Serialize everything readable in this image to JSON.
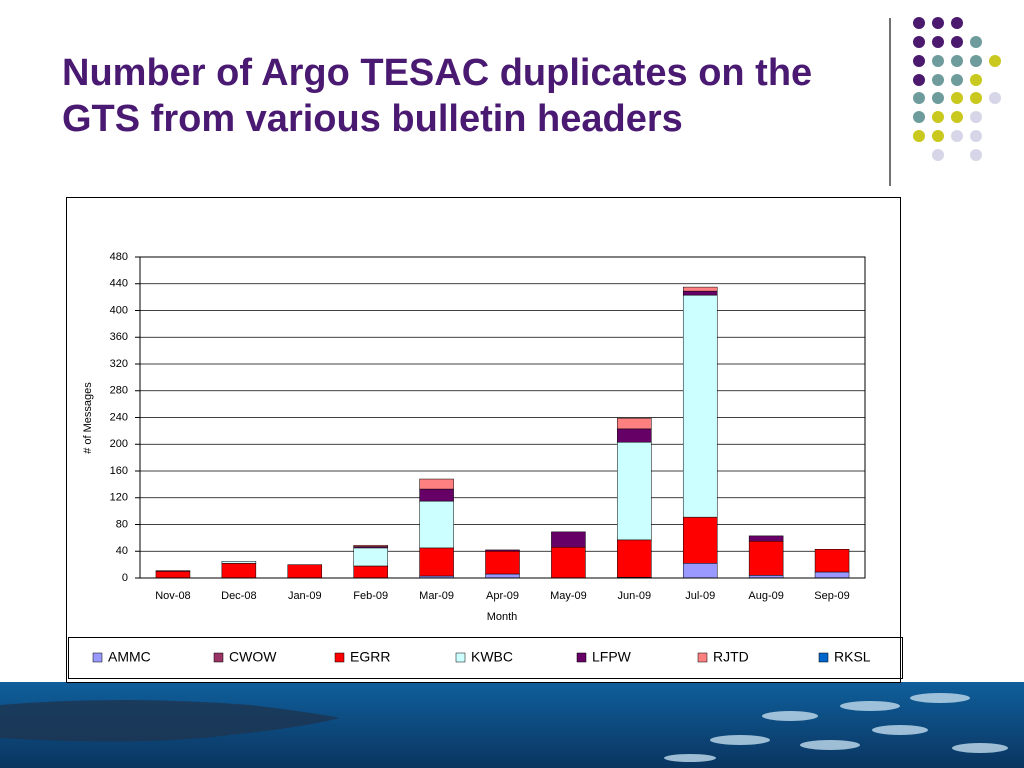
{
  "chart_data": {
    "type": "stacked_bar",
    "title": "Number of Argo TESAC duplicates on the GTS from various bulletin headers",
    "x_label": "Month",
    "y_label": "# of Messages",
    "categories": [
      "Nov-08",
      "Dec-08",
      "Jan-09",
      "Feb-09",
      "Mar-09",
      "Apr-09",
      "May-09",
      "Jun-09",
      "Jul-09",
      "Aug-09",
      "Sep-09"
    ],
    "series": [
      {
        "name": "AMMC",
        "color": "#9999ff",
        "values": [
          0,
          0,
          0,
          0,
          3,
          6,
          0,
          1,
          22,
          4,
          9
        ]
      },
      {
        "name": "CWOW",
        "color": "#993366",
        "values": [
          0,
          0,
          0,
          0,
          0,
          0,
          0,
          0,
          0,
          0,
          0
        ]
      },
      {
        "name": "EGRR",
        "color": "#ff0000",
        "values": [
          10,
          22,
          20,
          18,
          42,
          34,
          46,
          56,
          69,
          51,
          34
        ]
      },
      {
        "name": "KWBC",
        "color": "#ccffff",
        "values": [
          0,
          3,
          0,
          27,
          70,
          0,
          0,
          146,
          332,
          0,
          0
        ]
      },
      {
        "name": "LFPW",
        "color": "#660066",
        "values": [
          1,
          0,
          0,
          2,
          18,
          2,
          23,
          20,
          6,
          8,
          0
        ]
      },
      {
        "name": "RJTD",
        "color": "#ff8080",
        "values": [
          0,
          0,
          0,
          2,
          15,
          0,
          0,
          16,
          6,
          0,
          0
        ]
      },
      {
        "name": "RKSL",
        "color": "#0066cc",
        "values": [
          0,
          0,
          0,
          0,
          0,
          0,
          0,
          0,
          0,
          0,
          0
        ]
      }
    ],
    "ylim": [
      0,
      480
    ],
    "yticks": [
      0,
      40,
      80,
      120,
      160,
      200,
      240,
      280,
      320,
      360,
      400,
      440,
      480
    ],
    "grid": true
  }
}
